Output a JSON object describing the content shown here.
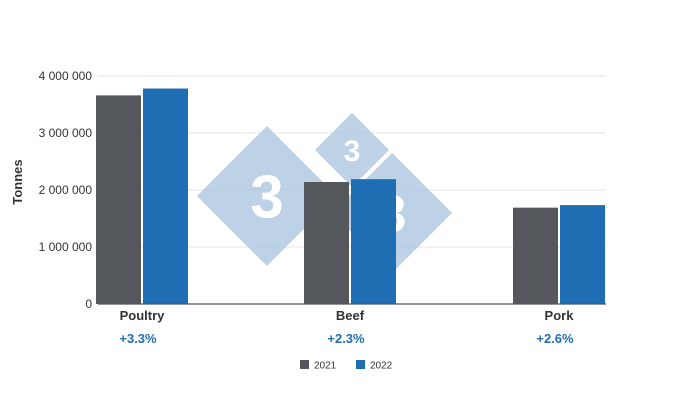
{
  "chart_data": {
    "type": "bar",
    "categories": [
      "Poultry",
      "Beef",
      "Pork"
    ],
    "series": [
      {
        "name": "2021",
        "values": [
          3660000,
          2140000,
          1690000
        ],
        "color": "#54575b"
      },
      {
        "name": "2022",
        "values": [
          3780000,
          2190000,
          1735000
        ],
        "color": "#1f6db3"
      }
    ],
    "annotations": [
      "+3.3%",
      "+2.3%",
      "+2.6%"
    ],
    "annotation_color": "#1f6db3",
    "ylabel": "Tonnes",
    "xlabel": "",
    "title": "",
    "ylim": [
      0,
      4000000
    ],
    "yticks": [
      0,
      1000000,
      2000000,
      3000000,
      4000000
    ],
    "ytick_labels": [
      "0",
      "1 000 000",
      "2 000 000",
      "3 000 000",
      "4 000 000"
    ],
    "grid": true,
    "legend_position": "bottom-center"
  },
  "watermark": {
    "text": "333",
    "color": "#a9c4df"
  }
}
